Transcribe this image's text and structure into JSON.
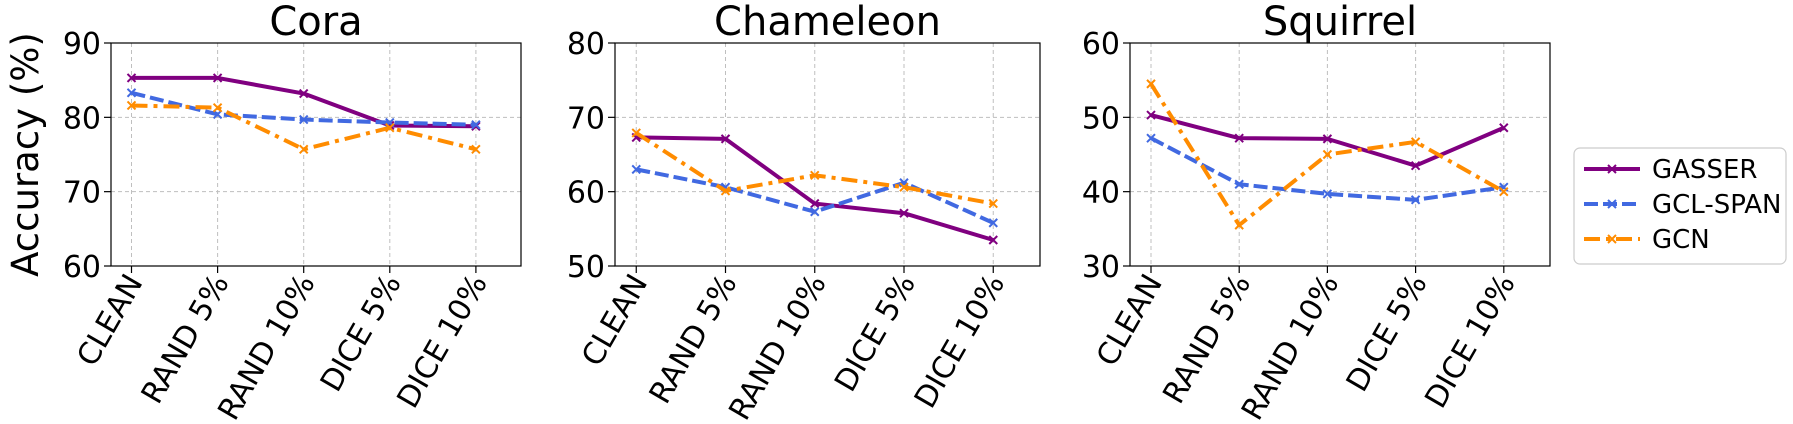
{
  "chart_data": [
    {
      "type": "line",
      "title": "Cora",
      "ylabel": "Accuracy (%)",
      "xlabel": "",
      "categories": [
        "CLEAN",
        "RAND 5%",
        "RAND 10%",
        "DICE 5%",
        "DICE 10%"
      ],
      "ylim": [
        60,
        90
      ],
      "yticks": [
        60,
        70,
        80,
        90
      ],
      "grid": true,
      "series": [
        {
          "name": "GASSER",
          "values": [
            85.3,
            85.3,
            83.2,
            78.9,
            78.8
          ]
        },
        {
          "name": "GCL-SPAN",
          "values": [
            83.3,
            80.4,
            79.7,
            79.3,
            79.0
          ]
        },
        {
          "name": "GCN",
          "values": [
            81.6,
            81.3,
            75.7,
            78.6,
            75.7
          ]
        }
      ]
    },
    {
      "type": "line",
      "title": "Chameleon",
      "ylabel": "",
      "xlabel": "",
      "categories": [
        "CLEAN",
        "RAND 5%",
        "RAND 10%",
        "DICE 5%",
        "DICE 10%"
      ],
      "ylim": [
        50,
        80
      ],
      "yticks": [
        50,
        60,
        70,
        80
      ],
      "grid": true,
      "series": [
        {
          "name": "GASSER",
          "values": [
            67.3,
            67.1,
            58.4,
            57.1,
            53.5
          ]
        },
        {
          "name": "GCL-SPAN",
          "values": [
            63.0,
            60.6,
            57.3,
            61.2,
            55.8
          ]
        },
        {
          "name": "GCN",
          "values": [
            67.9,
            60.1,
            62.2,
            60.6,
            58.4
          ]
        }
      ]
    },
    {
      "type": "line",
      "title": "Squirrel",
      "ylabel": "",
      "xlabel": "",
      "categories": [
        "CLEAN",
        "RAND 5%",
        "RAND 10%",
        "DICE 5%",
        "DICE 10%"
      ],
      "ylim": [
        30,
        60
      ],
      "yticks": [
        30,
        40,
        50,
        60
      ],
      "grid": true,
      "series": [
        {
          "name": "GASSER",
          "values": [
            50.3,
            47.2,
            47.1,
            43.5,
            48.6
          ]
        },
        {
          "name": "GCL-SPAN",
          "values": [
            47.2,
            41.0,
            39.7,
            38.9,
            40.6
          ]
        },
        {
          "name": "GCN",
          "values": [
            54.5,
            35.5,
            45.0,
            46.7,
            40.0
          ]
        }
      ]
    }
  ],
  "legend": {
    "placement": "right",
    "entries": [
      {
        "name": "GASSER",
        "color": "#800080",
        "style": "solid"
      },
      {
        "name": "GCL-SPAN",
        "color": "#4169e1",
        "style": "dashed"
      },
      {
        "name": "GCN",
        "color": "#ff8c00",
        "style": "dashdot"
      }
    ]
  }
}
